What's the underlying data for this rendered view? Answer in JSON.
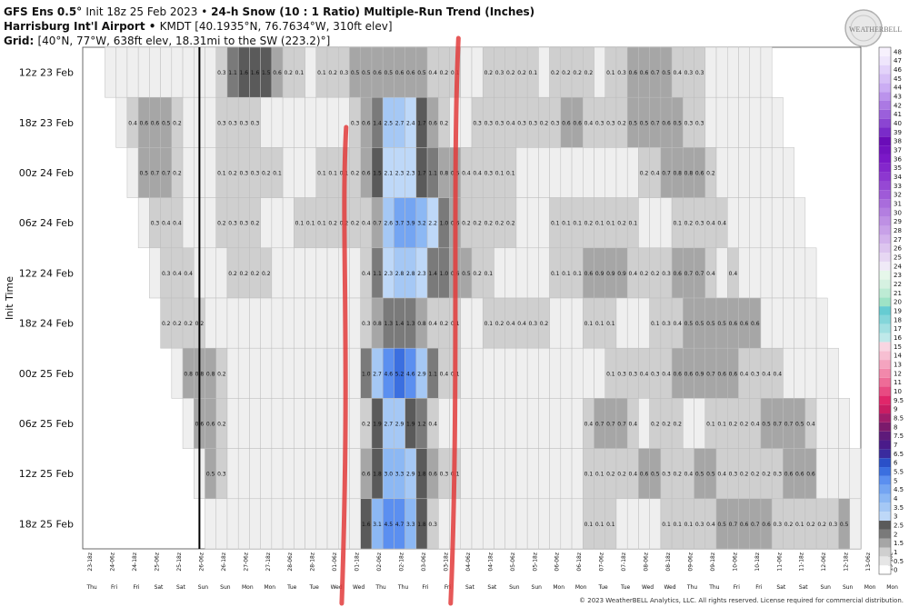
{
  "header": {
    "line1_bold": "GFS Ens 0.5° ",
    "line1_rest": "Init 18z 25 Feb 2023 • ",
    "line1_title": "24-h Snow (10 : 1 Ratio) Multiple-Run Trend (Inches)",
    "line2_bold": "Harrisburg Int'l Airport • ",
    "line2_rest": "KMDT [40.1935°N, 76.7634°W, 310ft elev]",
    "line3_bold": "Grid: ",
    "line3_rest": "[40°N, 77°W, 638ft elev, 18.31mi to the SW (223.2)°]"
  },
  "logo_text": "WEATHERBELL",
  "footer": "© 2023 WeatherBELL Analytics, LLC. All rights reserved. License required for commercial distribution.",
  "chart_data": {
    "type": "heatmap",
    "ylabel": "Init Time",
    "y": [
      "12z 23 Feb",
      "18z 23 Feb",
      "00z 24 Feb",
      "06z 24 Feb",
      "12z 24 Feb",
      "18z 24 Feb",
      "00z 25 Feb",
      "06z 25 Feb",
      "12z 25 Feb",
      "18z 25 Feb"
    ],
    "x": [
      "23-18z",
      "24-06z",
      "24-18z",
      "25-06z",
      "25-18z",
      "26-06z",
      "26-18z",
      "27-06z",
      "27-18z",
      "28-06z",
      "28-18z",
      "01-06z",
      "01-18z",
      "02-06z",
      "02-18z",
      "03-06z",
      "03-18z",
      "04-06z",
      "04-18z",
      "05-06z",
      "05-18z",
      "06-06z",
      "06-18z",
      "07-06z",
      "07-18z",
      "08-06z",
      "08-18z",
      "09-06z",
      "09-18z",
      "10-06z",
      "10-18z",
      "11-06z",
      "11-18z",
      "12-06z",
      "12-18z",
      "13-06z",
      "13-18z"
    ],
    "x_days": [
      "Thu",
      "Fri",
      "Fri",
      "Sat",
      "Sat",
      "Sun",
      "Sun",
      "Mon",
      "Mon",
      "Tue",
      "Tue",
      "Wed",
      "Wed",
      "Thu",
      "Thu",
      "Fri",
      "Fri",
      "Sat",
      "Sat",
      "Sun",
      "Sun",
      "Mon",
      "Mon",
      "Tue",
      "Tue",
      "Wed",
      "Wed",
      "Thu",
      "Thu",
      "Fri",
      "Fri",
      "Sat",
      "Sat",
      "Sun",
      "Sun",
      "Mon",
      "Mon"
    ],
    "rows": [
      {
        "start": 0,
        "values": [
          "",
          "",
          "",
          "",
          "",
          "",
          "",
          "",
          "",
          "",
          "",
          "",
          "",
          "",
          "",
          "",
          "",
          "",
          "",
          "",
          "",
          "",
          "",
          "",
          "",
          "",
          "",
          "",
          "",
          "",
          "",
          "",
          "",
          "",
          "",
          "",
          "",
          "",
          "",
          "",
          "",
          "",
          "",
          "",
          "",
          "",
          "",
          "",
          "",
          "",
          "",
          "",
          "",
          "",
          "",
          "",
          "",
          "",
          "",
          "",
          "",
          "",
          "",
          "",
          "",
          "",
          "",
          "",
          "",
          "",
          ""
        ],
        "cells": "                  0.3 1.1 1.6 1.6 1.5 0.6 0.2 0.1     0.1 0.2 0.3 0.5 0.5 0.6 0.5 0.6 0.6 0.5 0.4 0.2 0.1      0.2 0.3 0.2 0.2 0.1    0.2 0.2 0.2 0.2   0.1 0.3 0.6 0.6 0.7 0.5 0.4 0.3 0.3"
      }
    ],
    "grid": [
      {
        "row": 0,
        "first": 2,
        "vals": {
          "12": "0.3",
          "13": "1.1",
          "14": "1.6",
          "15": "1.6",
          "16": "1.5",
          "17": "0.6",
          "18": "0.2",
          "19": "0.1",
          "21": "0.1",
          "22": "0.2",
          "23": "0.3",
          "24": "0.5",
          "25": "0.5",
          "26": "0.6",
          "27": "0.5",
          "28": "0.6",
          "29": "0.6",
          "30": "0.5",
          "31": "0.4",
          "32": "0.2",
          "33": "0.1",
          "36": "0.2",
          "37": "0.3",
          "38": "0.2",
          "39": "0.2",
          "40": "0.1",
          "42": "0.2",
          "43": "0.2",
          "44": "0.2",
          "45": "0.2",
          "47": "0.1",
          "48": "0.3",
          "49": "0.6",
          "50": "0.6",
          "51": "0.7",
          "52": "0.5",
          "53": "0.4",
          "54": "0.3",
          "55": "0.3"
        }
      },
      {
        "row": 1,
        "first": 3,
        "vals": {
          "4": "0.4",
          "5": "0.6",
          "6": "0.6",
          "7": "0.5",
          "8": "0.2",
          "12": "0.3",
          "13": "0.3",
          "14": "0.3",
          "15": "0.3",
          "24": "0.3",
          "25": "0.6",
          "26": "1.4",
          "27": "2.5",
          "28": "2.7",
          "29": "2.4",
          "30": "1.7",
          "31": "0.6",
          "32": "0.2",
          "35": "0.3",
          "36": "0.3",
          "37": "0.3",
          "38": "0.4",
          "39": "0.3",
          "40": "0.3",
          "41": "0.2",
          "42": "0.3",
          "43": "0.6",
          "44": "0.6",
          "45": "0.4",
          "46": "0.3",
          "47": "0.3",
          "48": "0.2",
          "49": "0.5",
          "50": "0.5",
          "51": "0.7",
          "52": "0.6",
          "53": "0.5",
          "54": "0.3",
          "55": "0.3"
        }
      },
      {
        "row": 2,
        "first": 4,
        "vals": {
          "5": "0.5",
          "6": "0.7",
          "7": "0.7",
          "8": "0.2",
          "12": "0.1",
          "13": "0.2",
          "14": "0.3",
          "15": "0.3",
          "16": "0.2",
          "17": "0.1",
          "21": "0.1",
          "22": "0.1",
          "23": "0.1",
          "24": "0.2",
          "25": "0.6",
          "26": "1.5",
          "27": "2.1",
          "28": "2.3",
          "29": "2.3",
          "30": "1.7",
          "31": "1.1",
          "32": "0.8",
          "33": "0.5",
          "34": "0.4",
          "35": "0.4",
          "36": "0.3",
          "37": "0.1",
          "38": "0.1",
          "50": "0.2",
          "51": "0.4",
          "52": "0.7",
          "53": "0.8",
          "54": "0.8",
          "55": "0.6",
          "56": "0.2"
        }
      },
      {
        "row": 3,
        "first": 5,
        "vals": {
          "6": "0.3",
          "7": "0.4",
          "8": "0.4",
          "12": "0.2",
          "13": "0.3",
          "14": "0.3",
          "15": "0.2",
          "19": "0.1",
          "20": "0.1",
          "21": "0.1",
          "22": "0.2",
          "23": "0.2",
          "24": "0.2",
          "25": "0.4",
          "26": "0.7",
          "27": "2.6",
          "28": "3.7",
          "29": "3.9",
          "30": "3.2",
          "31": "2.2",
          "32": "1.0",
          "33": "0.6",
          "34": "0.2",
          "35": "0.2",
          "36": "0.2",
          "37": "0.2",
          "38": "0.2",
          "42": "0.1",
          "43": "0.1",
          "44": "0.1",
          "45": "0.2",
          "46": "0.1",
          "47": "0.1",
          "48": "0.2",
          "49": "0.1",
          "53": "0.1",
          "54": "0.2",
          "55": "0.3",
          "56": "0.4",
          "57": "0.4"
        }
      },
      {
        "row": 4,
        "first": 6,
        "vals": {
          "7": "0.3",
          "8": "0.4",
          "9": "0.4",
          "13": "0.2",
          "14": "0.2",
          "15": "0.2",
          "16": "0.2",
          "25": "0.4",
          "26": "1.1",
          "27": "2.3",
          "28": "2.8",
          "29": "2.8",
          "30": "2.3",
          "31": "1.4",
          "32": "1.0",
          "33": "0.6",
          "34": "0.5",
          "35": "0.2",
          "36": "0.1",
          "42": "0.1",
          "43": "0.1",
          "44": "0.1",
          "45": "0.6",
          "46": "0.9",
          "47": "0.9",
          "48": "0.9",
          "49": "0.4",
          "50": "0.2",
          "51": "0.2",
          "52": "0.3",
          "53": "0.6",
          "54": "0.7",
          "55": "0.7",
          "56": "0.4",
          "58": "0.4"
        }
      },
      {
        "row": 5,
        "first": 7,
        "vals": {
          "7": "0.2",
          "8": "0.2",
          "9": "0.2",
          "10": "0.2",
          "25": "0.3",
          "26": "0.8",
          "27": "1.3",
          "28": "1.4",
          "29": "1.3",
          "30": "0.8",
          "31": "0.4",
          "32": "0.2",
          "33": "0.1",
          "36": "0.1",
          "37": "0.2",
          "38": "0.4",
          "39": "0.4",
          "40": "0.3",
          "41": "0.2",
          "45": "0.1",
          "46": "0.1",
          "47": "0.1",
          "51": "0.1",
          "52": "0.3",
          "53": "0.4",
          "54": "0.5",
          "55": "0.5",
          "56": "0.5",
          "57": "0.5",
          "58": "0.6",
          "59": "0.6",
          "60": "0.6"
        }
      },
      {
        "row": 6,
        "first": 8,
        "vals": {
          "9": "0.8",
          "10": "0.8",
          "11": "0.8",
          "12": "0.2",
          "25": "1.0",
          "26": "2.7",
          "27": "4.6",
          "28": "5.2",
          "29": "4.6",
          "30": "2.9",
          "31": "1.1",
          "32": "0.4",
          "33": "0.1",
          "47": "0.1",
          "48": "0.3",
          "49": "0.3",
          "50": "0.4",
          "51": "0.3",
          "52": "0.4",
          "53": "0.6",
          "54": "0.6",
          "55": "0.9",
          "56": "0.7",
          "57": "0.6",
          "58": "0.6",
          "59": "0.4",
          "60": "0.3",
          "61": "0.4",
          "62": "0.4"
        }
      },
      {
        "row": 7,
        "first": 9,
        "vals": {
          "10": "0.6",
          "11": "0.6",
          "12": "0.2",
          "25": "0.2",
          "26": "1.9",
          "27": "2.7",
          "28": "2.9",
          "29": "1.9",
          "30": "1.2",
          "31": "0.4",
          "45": "0.4",
          "46": "0.7",
          "47": "0.7",
          "48": "0.7",
          "49": "0.4",
          "51": "0.2",
          "52": "0.2",
          "53": "0.2",
          "56": "0.1",
          "57": "0.1",
          "58": "0.2",
          "59": "0.2",
          "60": "0.4",
          "61": "0.5",
          "62": "0.7",
          "63": "0.7",
          "64": "0.5",
          "65": "0.4"
        }
      },
      {
        "row": 8,
        "first": 10,
        "vals": {
          "11": "0.5",
          "12": "0.3",
          "25": "0.6",
          "26": "1.8",
          "27": "3.0",
          "28": "3.3",
          "29": "2.9",
          "30": "1.8",
          "31": "0.6",
          "32": "0.3",
          "33": "0.1",
          "45": "0.1",
          "46": "0.1",
          "47": "0.2",
          "48": "0.2",
          "49": "0.4",
          "50": "0.6",
          "51": "0.5",
          "52": "0.3",
          "53": "0.2",
          "54": "0.4",
          "55": "0.5",
          "56": "0.5",
          "57": "0.4",
          "58": "0.3",
          "59": "0.2",
          "60": "0.2",
          "61": "0.2",
          "62": "0.3",
          "63": "0.6",
          "64": "0.6",
          "65": "0.6"
        }
      },
      {
        "row": 9,
        "first": 11,
        "vals": {
          "25": "1.6",
          "26": "3.1",
          "27": "4.5",
          "28": "4.7",
          "29": "3.3",
          "30": "1.8",
          "31": "0.3",
          "45": "0.1",
          "46": "0.1",
          "47": "0.1",
          "52": "0.1",
          "53": "0.1",
          "54": "0.1",
          "55": "0.3",
          "56": "0.4",
          "57": "0.5",
          "58": "0.7",
          "59": "0.6",
          "60": "0.7",
          "61": "0.6",
          "62": "0.3",
          "63": "0.2",
          "64": "0.1",
          "65": "0.2",
          "66": "0.2",
          "67": "0.3",
          "68": "0.5"
        }
      }
    ],
    "colorbar": [
      "0",
      "0.5",
      "1",
      "1.5",
      "2",
      "2.5",
      "3",
      "3.5",
      "4",
      "4.5",
      "5",
      "5.5",
      "6",
      "6.5",
      "7",
      "7.5",
      "8",
      "8.5",
      "9",
      "9.5",
      "10",
      "11",
      "12",
      "13",
      "14",
      "15",
      "16",
      "17",
      "18",
      "19",
      "20",
      "21",
      "22",
      "23",
      "24",
      "25",
      "26",
      "27",
      "28",
      "29",
      "30",
      "31",
      "32",
      "33",
      "34",
      "35",
      "36",
      "37",
      "38",
      "39",
      "40",
      "41",
      "42",
      "43",
      "44",
      "45",
      "46",
      "47",
      "48"
    ]
  }
}
